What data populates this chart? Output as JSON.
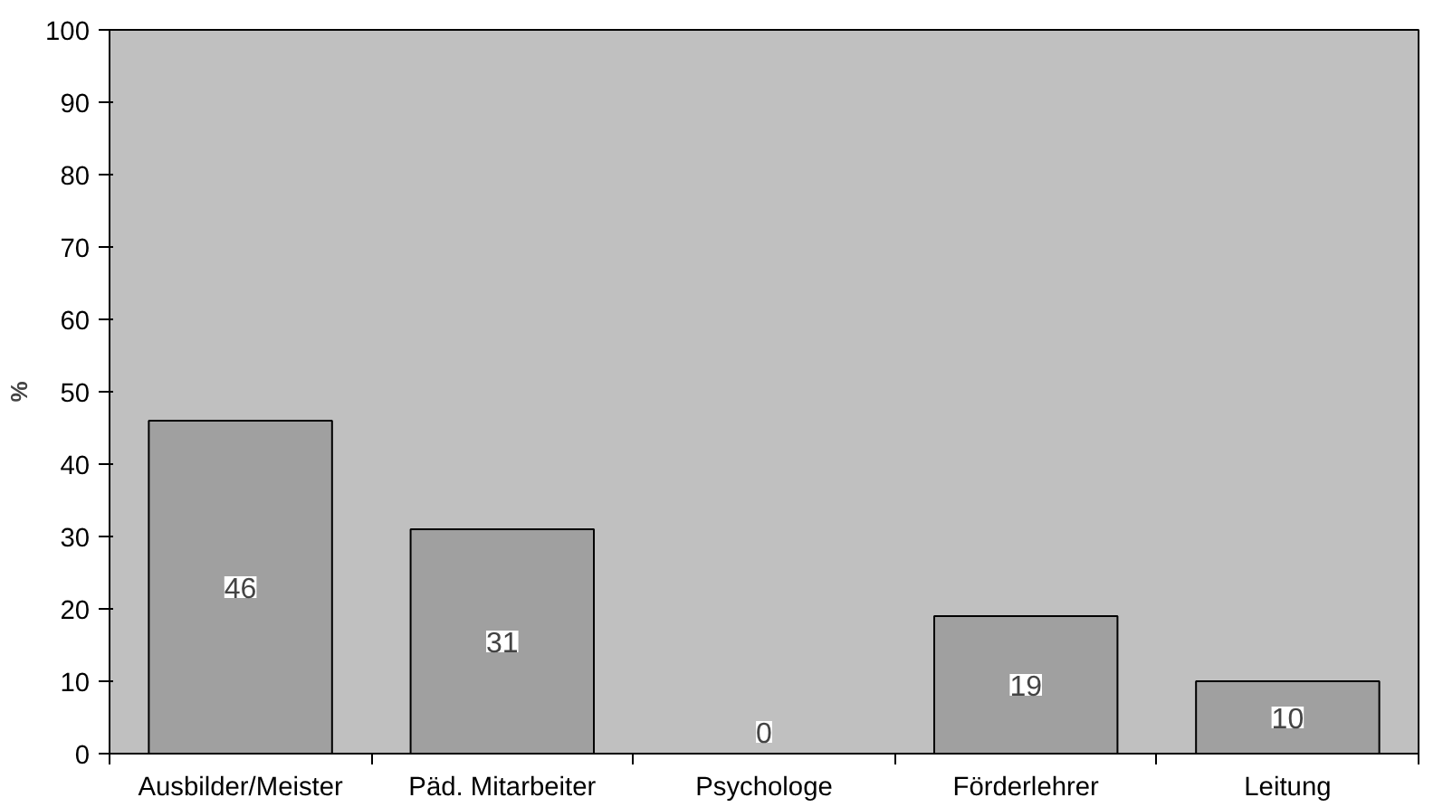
{
  "chart_data": {
    "type": "bar",
    "ylabel": "%",
    "categories": [
      "Ausbilder/Meister",
      "Päd. Mitarbeiter",
      "Psychologe",
      "Förderlehrer",
      "Leitung"
    ],
    "values": [
      46,
      31,
      0,
      19,
      10
    ],
    "color": "#a0a0a0",
    "ylim": [
      0,
      100
    ],
    "yticks": [
      0,
      10,
      20,
      30,
      40,
      50,
      60,
      70,
      80,
      90,
      100
    ],
    "data_labels": true,
    "grid": false
  }
}
